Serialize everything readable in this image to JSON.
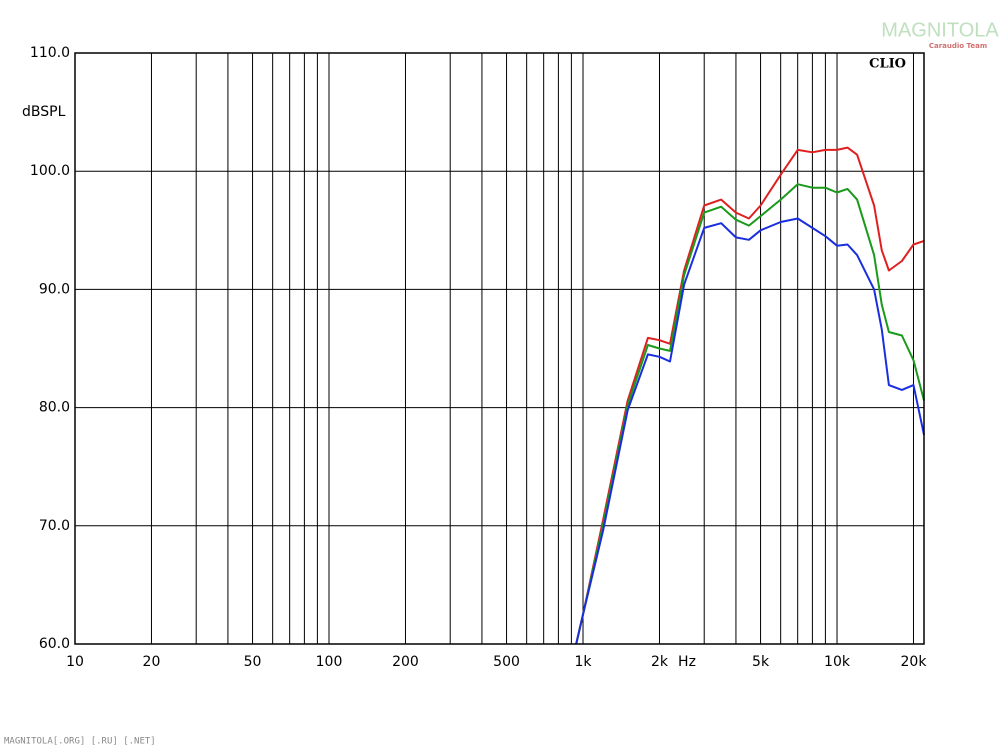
{
  "chart_data": {
    "type": "line",
    "y_label": "dBSPL",
    "x_unit": "Hz",
    "brand": "CLIO",
    "watermark": "MAGNITOLA",
    "watermark_sub": "Caraudio Team",
    "footer": "MAGNITOLA[.ORG] [.RU] [.NET]",
    "xscale": "log",
    "grid": true,
    "xlim": [
      10,
      22000
    ],
    "ylim": [
      60,
      110
    ],
    "xticks": [
      10,
      20,
      50,
      100,
      200,
      500,
      {
        "value": 1000,
        "label": "1k"
      },
      {
        "value": 2000,
        "label": "2k"
      },
      {
        "value": 5000,
        "label": "5k"
      },
      {
        "value": 10000,
        "label": "10k"
      },
      {
        "value": 20000,
        "label": "20k"
      }
    ],
    "minor_xticks": [
      30,
      40,
      60,
      70,
      80,
      90,
      300,
      400,
      600,
      700,
      800,
      900,
      3000,
      4000,
      6000,
      7000,
      8000,
      9000
    ],
    "yticks": [
      {
        "value": 60,
        "label": "60.0"
      },
      {
        "value": 70,
        "label": "70.0"
      },
      {
        "value": 80,
        "label": "80.0"
      },
      {
        "value": 90,
        "label": "90.0"
      },
      {
        "value": 100,
        "label": "100.0"
      },
      {
        "value": 110,
        "label": "110.0"
      }
    ],
    "x": [
      940,
      1000,
      1200,
      1500,
      1800,
      2000,
      2200,
      2500,
      3000,
      3500,
      4000,
      4500,
      5000,
      6000,
      7000,
      8000,
      9000,
      10000,
      11000,
      12000,
      14000,
      15000,
      16000,
      18000,
      20000,
      22000
    ],
    "series": [
      {
        "color": "#e02020",
        "values": [
          60,
          62.5,
          70.5,
          80.6,
          85.9,
          85.7,
          85.4,
          91.6,
          97.1,
          97.6,
          96.5,
          96,
          97.1,
          99.7,
          101.8,
          101.6,
          101.8,
          101.8,
          102,
          101.4,
          97.1,
          93.3,
          91.6,
          92.4,
          93.8,
          94.1
        ]
      },
      {
        "color": "#1a9a1a",
        "values": [
          60,
          62.5,
          70.1,
          80.2,
          85.3,
          85,
          84.8,
          91.2,
          96.5,
          97,
          95.9,
          95.4,
          96.2,
          97.6,
          98.9,
          98.6,
          98.6,
          98.2,
          98.5,
          97.6,
          92.9,
          88.7,
          86.4,
          86.1,
          84,
          80.6
        ]
      },
      {
        "color": "#1a2ee0",
        "values": [
          60,
          62.5,
          69.6,
          79.8,
          84.5,
          84.3,
          83.9,
          90.4,
          95.2,
          95.6,
          94.4,
          94.2,
          95,
          95.7,
          96,
          95.2,
          94.5,
          93.7,
          93.8,
          92.9,
          90,
          86.6,
          81.9,
          81.5,
          81.9,
          77.7
        ]
      }
    ]
  }
}
